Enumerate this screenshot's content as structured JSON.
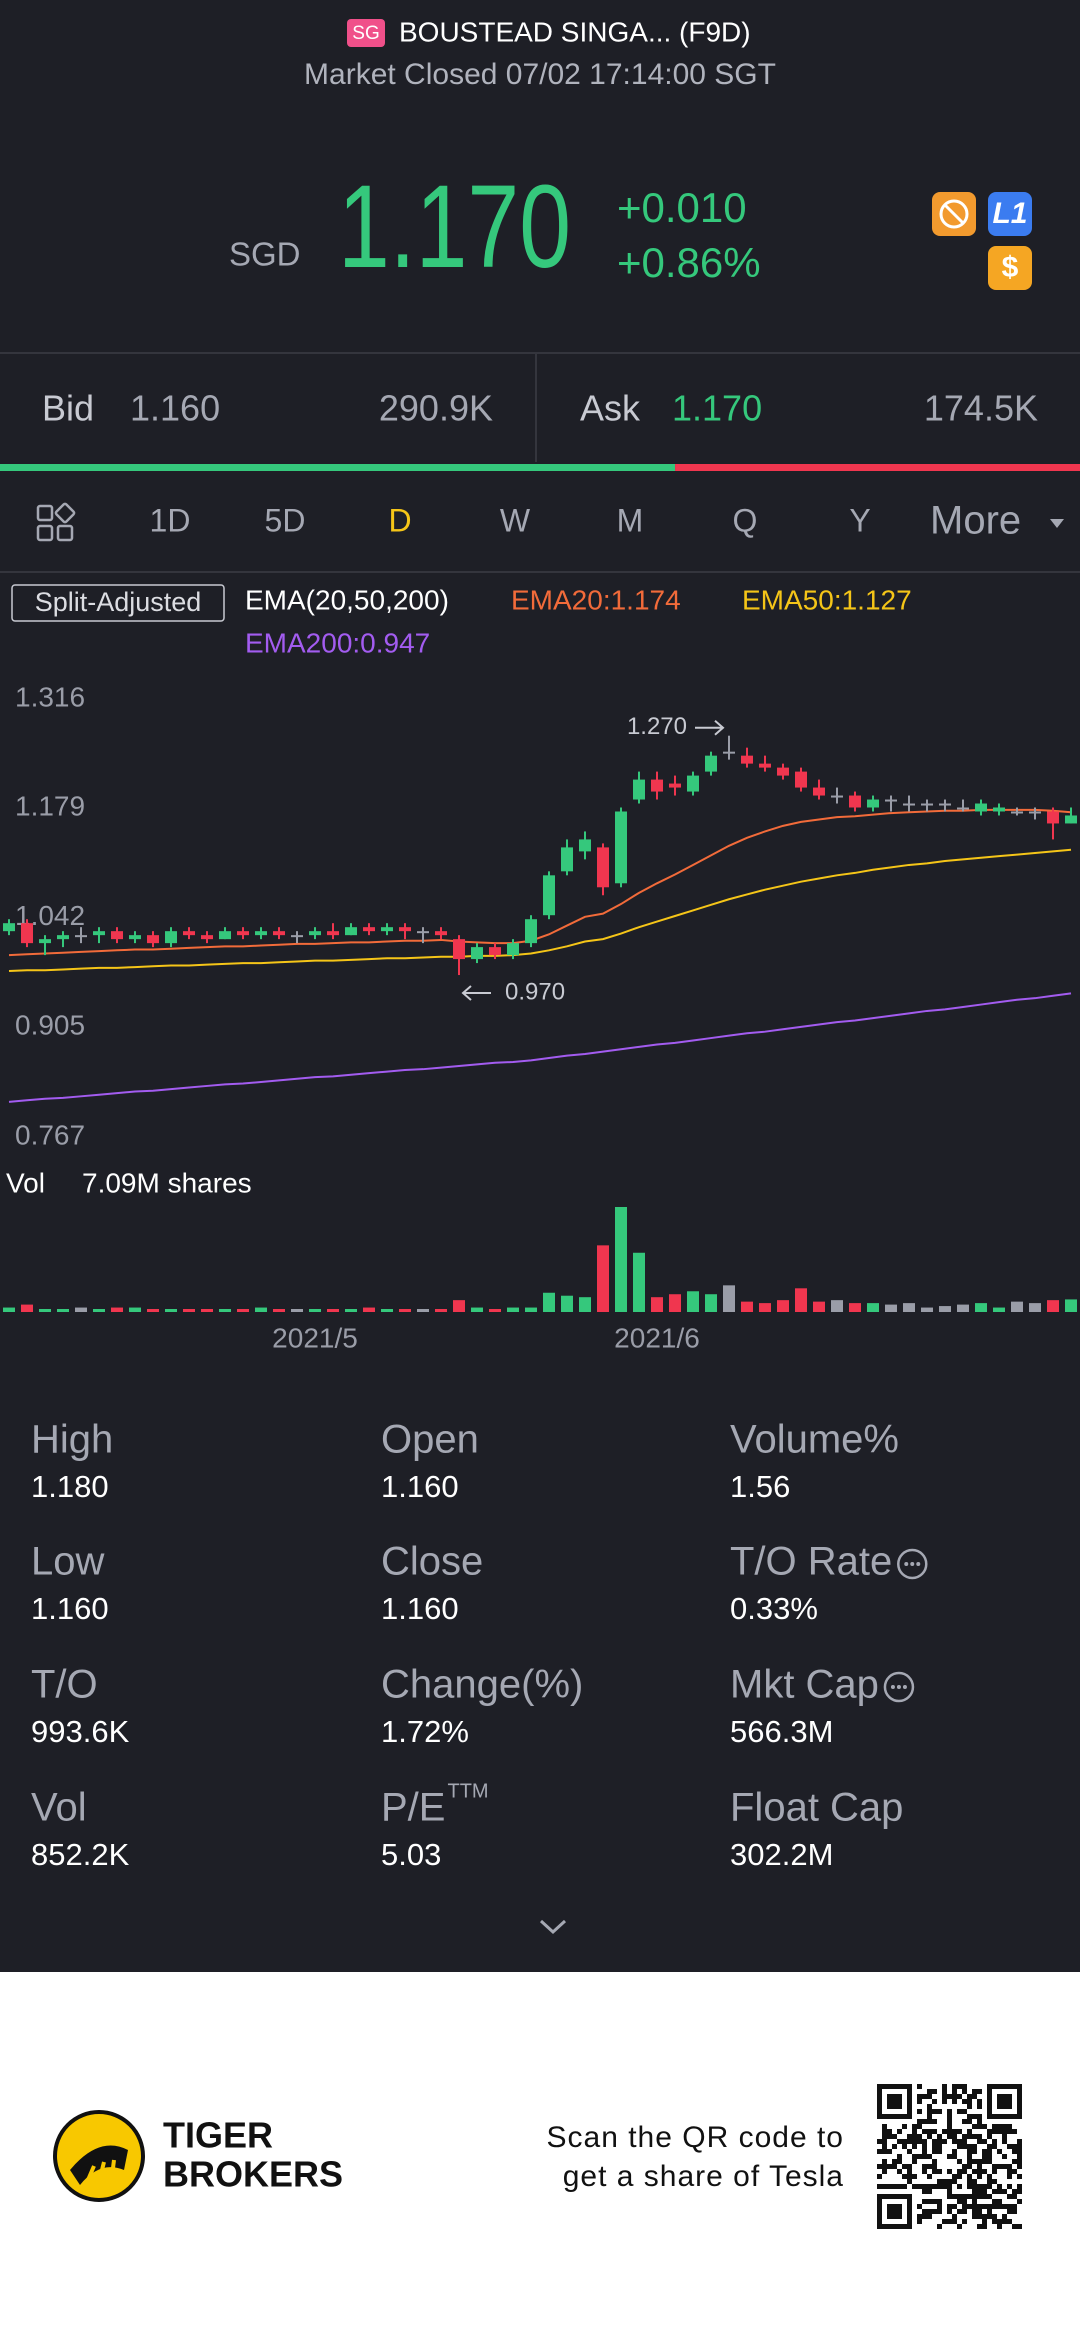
{
  "header": {
    "badge": "SG",
    "name": "BOUSTEAD SINGA... (F9D)",
    "status": "Market Closed 07/02 17:14:00 SGT"
  },
  "quote": {
    "currency": "SGD",
    "price": "1.170",
    "change": "+0.010",
    "change_pct": "+0.86%",
    "level_badge": "L1",
    "currency_badge": "$"
  },
  "order_book": {
    "bid_label": "Bid",
    "bid_price": "1.160",
    "bid_size": "290.9K",
    "ask_label": "Ask",
    "ask_price": "1.170",
    "ask_size": "174.5K"
  },
  "periods": [
    "1D",
    "5D",
    "D",
    "W",
    "M",
    "Q",
    "Y",
    "More"
  ],
  "active_period": "D",
  "chart_data": {
    "type": "candlestick",
    "legend": {
      "adjustment": "Split-Adjusted",
      "indicator": "EMA(20,50,200)"
    },
    "ylim": [
      0.767,
      1.316
    ],
    "yticks": [
      1.316,
      1.179,
      1.042,
      0.905,
      0.767
    ],
    "grid": false,
    "up_color": "#35c87c",
    "down_color": "#f0364f",
    "flat_color": "#9a9da8",
    "categories": [
      null,
      null,
      null,
      null,
      null,
      null,
      null,
      null,
      null,
      null,
      null,
      null,
      null,
      null,
      null,
      null,
      null,
      "2021/5",
      null,
      null,
      null,
      null,
      null,
      null,
      null,
      null,
      null,
      null,
      null,
      null,
      null,
      null,
      null,
      null,
      null,
      null,
      "2021/6",
      null,
      null,
      null,
      null,
      null,
      null,
      null,
      null,
      null,
      null,
      null,
      null,
      null,
      null,
      null,
      null,
      null,
      null,
      null,
      null,
      null,
      null,
      null
    ],
    "open": [
      1.025,
      1.035,
      1.01,
      1.015,
      1.02,
      1.02,
      1.025,
      1.015,
      1.02,
      1.01,
      1.025,
      1.02,
      1.015,
      1.025,
      1.02,
      1.025,
      1.02,
      1.02,
      1.025,
      1.02,
      1.03,
      1.025,
      1.03,
      1.025,
      1.025,
      1.015,
      0.99,
      1.005,
      0.995,
      1.01,
      1.045,
      1.1,
      1.125,
      1.13,
      1.085,
      1.19,
      1.215,
      1.21,
      1.2,
      1.225,
      1.25,
      1.245,
      1.235,
      1.23,
      1.225,
      1.205,
      1.195,
      1.195,
      1.18,
      1.19,
      1.185,
      1.185,
      1.185,
      1.18,
      1.175,
      1.175,
      1.175,
      1.175,
      1.175,
      1.16
    ],
    "high": [
      1.04,
      1.04,
      1.02,
      1.025,
      1.03,
      1.03,
      1.03,
      1.025,
      1.025,
      1.03,
      1.03,
      1.025,
      1.03,
      1.03,
      1.03,
      1.03,
      1.025,
      1.03,
      1.035,
      1.035,
      1.035,
      1.035,
      1.035,
      1.03,
      1.03,
      1.02,
      1.01,
      1.01,
      1.015,
      1.045,
      1.1,
      1.14,
      1.15,
      1.135,
      1.18,
      1.225,
      1.225,
      1.22,
      1.225,
      1.25,
      1.27,
      1.255,
      1.245,
      1.235,
      1.23,
      1.215,
      1.205,
      1.2,
      1.195,
      1.195,
      1.195,
      1.19,
      1.19,
      1.19,
      1.19,
      1.185,
      1.18,
      1.18,
      1.18,
      1.18
    ],
    "low": [
      1.02,
      1.005,
      0.995,
      1.005,
      1.01,
      1.01,
      1.01,
      1.01,
      1.005,
      1.005,
      1.015,
      1.01,
      1.015,
      1.015,
      1.015,
      1.015,
      1.01,
      1.015,
      1.015,
      1.02,
      1.02,
      1.02,
      1.015,
      1.01,
      1.015,
      0.97,
      0.985,
      0.99,
      0.99,
      1.005,
      1.04,
      1.095,
      1.115,
      1.07,
      1.08,
      1.185,
      1.19,
      1.195,
      1.195,
      1.22,
      1.24,
      1.23,
      1.225,
      1.215,
      1.2,
      1.19,
      1.185,
      1.175,
      1.175,
      1.175,
      1.175,
      1.175,
      1.175,
      1.175,
      1.17,
      1.17,
      1.17,
      1.165,
      1.14,
      1.16
    ],
    "close": [
      1.035,
      1.01,
      1.015,
      1.02,
      1.02,
      1.025,
      1.015,
      1.02,
      1.01,
      1.025,
      1.02,
      1.015,
      1.025,
      1.02,
      1.025,
      1.02,
      1.02,
      1.025,
      1.02,
      1.03,
      1.025,
      1.03,
      1.025,
      1.025,
      1.02,
      0.99,
      1.005,
      0.995,
      1.01,
      1.04,
      1.095,
      1.13,
      1.14,
      1.08,
      1.175,
      1.215,
      1.2,
      1.205,
      1.22,
      1.245,
      1.25,
      1.235,
      1.23,
      1.22,
      1.205,
      1.195,
      1.195,
      1.18,
      1.19,
      1.19,
      1.185,
      1.185,
      1.185,
      1.18,
      1.185,
      1.18,
      1.175,
      1.175,
      1.16,
      1.17
    ],
    "series": [
      {
        "name": "EMA20:1.174",
        "color": "#f26b3a",
        "values": [
          0.995,
          0.996,
          0.997,
          0.998,
          0.999,
          1.0,
          1.001,
          1.002,
          1.002,
          1.003,
          1.004,
          1.005,
          1.006,
          1.006,
          1.007,
          1.008,
          1.009,
          1.009,
          1.01,
          1.011,
          1.011,
          1.012,
          1.013,
          1.013,
          1.014,
          1.012,
          1.011,
          1.01,
          1.01,
          1.013,
          1.021,
          1.032,
          1.043,
          1.047,
          1.059,
          1.073,
          1.085,
          1.096,
          1.108,
          1.12,
          1.132,
          1.142,
          1.15,
          1.157,
          1.162,
          1.165,
          1.168,
          1.169,
          1.171,
          1.173,
          1.174,
          1.175,
          1.176,
          1.176,
          1.177,
          1.177,
          1.177,
          1.177,
          1.176,
          1.174
        ]
      },
      {
        "name": "EMA50:1.127",
        "color": "#f5c518",
        "values": [
          0.975,
          0.976,
          0.976,
          0.977,
          0.978,
          0.979,
          0.979,
          0.98,
          0.981,
          0.982,
          0.982,
          0.983,
          0.984,
          0.985,
          0.985,
          0.986,
          0.987,
          0.988,
          0.988,
          0.989,
          0.99,
          0.991,
          0.991,
          0.992,
          0.993,
          0.993,
          0.994,
          0.994,
          0.995,
          0.997,
          1.001,
          1.006,
          1.012,
          1.015,
          1.022,
          1.03,
          1.037,
          1.044,
          1.051,
          1.058,
          1.065,
          1.071,
          1.077,
          1.082,
          1.087,
          1.091,
          1.095,
          1.098,
          1.102,
          1.105,
          1.108,
          1.11,
          1.113,
          1.115,
          1.117,
          1.119,
          1.121,
          1.123,
          1.125,
          1.127
        ]
      },
      {
        "name": "EMA200:0.947",
        "color": "#a35cf0",
        "values": [
          0.811,
          0.813,
          0.815,
          0.816,
          0.818,
          0.82,
          0.822,
          0.824,
          0.825,
          0.827,
          0.829,
          0.831,
          0.833,
          0.834,
          0.836,
          0.838,
          0.84,
          0.842,
          0.843,
          0.845,
          0.847,
          0.849,
          0.851,
          0.852,
          0.854,
          0.856,
          0.858,
          0.86,
          0.861,
          0.863,
          0.866,
          0.869,
          0.871,
          0.874,
          0.877,
          0.88,
          0.883,
          0.885,
          0.888,
          0.891,
          0.894,
          0.897,
          0.899,
          0.902,
          0.905,
          0.908,
          0.911,
          0.913,
          0.916,
          0.919,
          0.922,
          0.925,
          0.927,
          0.93,
          0.933,
          0.936,
          0.939,
          0.941,
          0.944,
          0.947
        ]
      }
    ],
    "annotations": [
      {
        "value": 1.27,
        "label": "1.270"
      },
      {
        "value": 0.97,
        "label": "0.970"
      }
    ],
    "volume": {
      "label": "Vol",
      "text": "7.09M shares",
      "values": [
        0.3,
        0.5,
        0.2,
        0.2,
        0.3,
        0.2,
        0.3,
        0.3,
        0.2,
        0.2,
        0.2,
        0.2,
        0.2,
        0.2,
        0.3,
        0.2,
        0.2,
        0.2,
        0.2,
        0.2,
        0.3,
        0.2,
        0.2,
        0.2,
        0.2,
        0.8,
        0.3,
        0.2,
        0.3,
        0.3,
        1.3,
        1.1,
        1.0,
        4.5,
        7.09,
        4.0,
        1.0,
        1.2,
        1.4,
        1.2,
        1.8,
        0.7,
        0.6,
        0.8,
        1.6,
        0.7,
        0.8,
        0.6,
        0.6,
        0.5,
        0.6,
        0.3,
        0.4,
        0.5,
        0.6,
        0.3,
        0.7,
        0.6,
        0.8,
        0.85
      ]
    }
  },
  "stats": [
    {
      "label": "High",
      "value": "1.180"
    },
    {
      "label": "Open",
      "value": "1.160"
    },
    {
      "label": "Volume%",
      "value": "1.56"
    },
    {
      "label": "Low",
      "value": "1.160"
    },
    {
      "label": "Close",
      "value": "1.160"
    },
    {
      "label": "T/O Rate",
      "value": "0.33%",
      "info": true
    },
    {
      "label": "T/O",
      "value": "993.6K"
    },
    {
      "label": "Change(%)",
      "value": "1.72%"
    },
    {
      "label": "Mkt Cap",
      "value": "566.3M",
      "info": true
    },
    {
      "label": "Vol",
      "value": "852.2K"
    },
    {
      "label": "P/E",
      "superscript": "TTM",
      "value": "5.03"
    },
    {
      "label": "Float Cap",
      "value": "302.2M"
    }
  ],
  "footer": {
    "brand": [
      "TIGER",
      "BROKERS"
    ],
    "promo": [
      "Scan the QR code to",
      "get a share of Tesla"
    ]
  }
}
